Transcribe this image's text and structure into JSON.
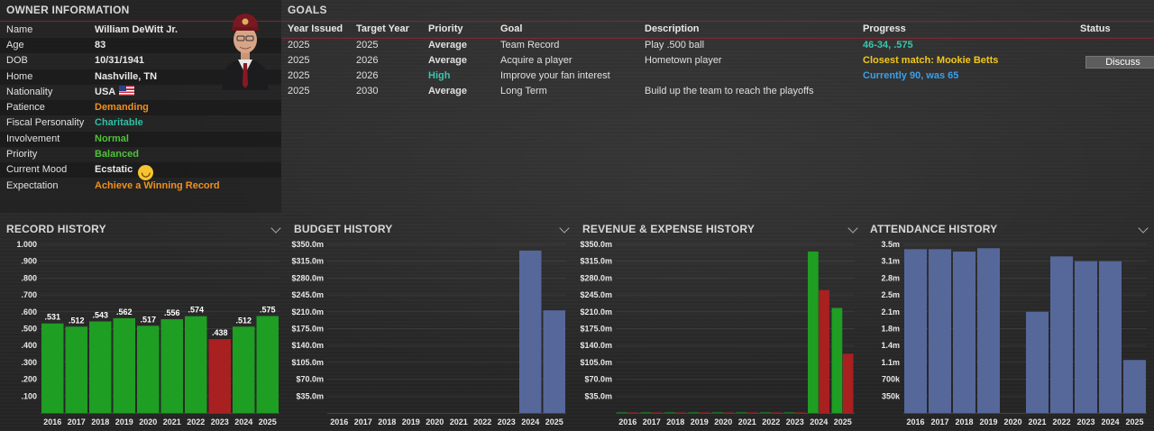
{
  "owner": {
    "title": "OWNER INFORMATION",
    "rows": [
      {
        "label": "Name",
        "value": "William DeWitt Jr."
      },
      {
        "label": "Age",
        "value": "83"
      },
      {
        "label": "DOB",
        "value": "10/31/1941"
      },
      {
        "label": "Home",
        "value": "Nashville, TN"
      },
      {
        "label": "Nationality",
        "value": "USA"
      },
      {
        "label": "Patience",
        "value": "Demanding"
      },
      {
        "label": "Fiscal Personality",
        "value": "Charitable"
      },
      {
        "label": "Involvement",
        "value": "Normal"
      },
      {
        "label": "Priority",
        "value": "Balanced"
      },
      {
        "label": "Current Mood",
        "value": "Ecstatic"
      },
      {
        "label": "Expectation",
        "value": "Achieve a Winning Record"
      }
    ],
    "colors": {
      "orange": "#f0901c",
      "teal": "#2fbfa5",
      "green": "#4fc23a"
    }
  },
  "goals": {
    "title": "GOALS",
    "headers": [
      "Year Issued",
      "Target Year",
      "Priority",
      "Goal",
      "Description",
      "Progress",
      "Status"
    ],
    "rows": [
      {
        "year_issued": "2025",
        "target_year": "2025",
        "priority": "Average",
        "goal": "Team Record",
        "description": "Play .500 ball",
        "progress": "46-34, .575",
        "status": ""
      },
      {
        "year_issued": "2025",
        "target_year": "2026",
        "priority": "Average",
        "goal": "Acquire a player",
        "description": "Hometown player",
        "progress": "Closest match: Mookie Betts",
        "status": "Discuss"
      },
      {
        "year_issued": "2025",
        "target_year": "2026",
        "priority": "High",
        "goal": "Improve your fan interest",
        "description": "",
        "progress": "Currently 90, was 65",
        "status": ""
      },
      {
        "year_issued": "2025",
        "target_year": "2030",
        "priority": "Average",
        "goal": "Long Term",
        "description": "Build up the team to reach the playoffs",
        "progress": "",
        "status": ""
      }
    ]
  },
  "charts": {
    "record_title": "RECORD HISTORY",
    "budget_title": "BUDGET HISTORY",
    "revenue_title": "REVENUE & EXPENSE HISTORY",
    "attendance_title": "ATTENDANCE HISTORY"
  },
  "chart_data": [
    {
      "id": "record",
      "type": "bar",
      "title": "RECORD HISTORY",
      "categories": [
        "2016",
        "2017",
        "2018",
        "2019",
        "2020",
        "2021",
        "2022",
        "2023",
        "2024",
        "2025"
      ],
      "values": [
        0.531,
        0.512,
        0.543,
        0.562,
        0.517,
        0.556,
        0.574,
        0.438,
        0.512,
        0.575
      ],
      "data_labels": [
        ".531",
        ".512",
        ".543",
        ".562",
        ".517",
        ".556",
        ".574",
        ".438",
        ".512",
        ".575"
      ],
      "colors": [
        "#1e9e22",
        "#1e9e22",
        "#1e9e22",
        "#1e9e22",
        "#1e9e22",
        "#1e9e22",
        "#1e9e22",
        "#a82020",
        "#1e9e22",
        "#1e9e22"
      ],
      "yticks": [
        ".100",
        ".200",
        ".300",
        ".400",
        ".500",
        ".600",
        ".700",
        ".800",
        ".900",
        "1.000"
      ],
      "ylim": [
        0,
        1.0
      ]
    },
    {
      "id": "budget",
      "type": "bar",
      "title": "BUDGET HISTORY",
      "categories": [
        "2016",
        "2017",
        "2018",
        "2019",
        "2020",
        "2021",
        "2022",
        "2023",
        "2024",
        "2025"
      ],
      "values": [
        0,
        0,
        0,
        0,
        0,
        0,
        0,
        0,
        337,
        213
      ],
      "color": "#56679a",
      "yticks": [
        "$35.0m",
        "$70.0m",
        "$105.0m",
        "$140.0m",
        "$175.0m",
        "$210.0m",
        "$245.0m",
        "$280.0m",
        "$315.0m",
        "$350.0m"
      ],
      "ylim": [
        0,
        350
      ]
    },
    {
      "id": "revenue",
      "type": "bar",
      "title": "REVENUE & EXPENSE HISTORY",
      "categories": [
        "2016",
        "2017",
        "2018",
        "2019",
        "2020",
        "2021",
        "2022",
        "2023",
        "2024",
        "2025"
      ],
      "series": [
        {
          "values": [
            1,
            1,
            1,
            1,
            1,
            1,
            1,
            1,
            335,
            218
          ],
          "color": "#1e9e22"
        },
        {
          "values": [
            1,
            1,
            1,
            1,
            1,
            1,
            1,
            1,
            255,
            123
          ],
          "color": "#a82020"
        }
      ],
      "yticks": [
        "$35.0m",
        "$70.0m",
        "$105.0m",
        "$140.0m",
        "$175.0m",
        "$210.0m",
        "$245.0m",
        "$280.0m",
        "$315.0m",
        "$350.0m"
      ],
      "ylim": [
        0,
        350
      ]
    },
    {
      "id": "attendance",
      "type": "bar",
      "title": "ATTENDANCE HISTORY",
      "categories": [
        "2016",
        "2017",
        "2018",
        "2019",
        "2020",
        "2021",
        "2022",
        "2023",
        "2024",
        "2025"
      ],
      "values": [
        3.4,
        3.4,
        3.35,
        3.42,
        0,
        2.1,
        3.25,
        3.15,
        3.15,
        1.1
      ],
      "color": "#56679a",
      "yticks": [
        "350k",
        "700k",
        "1.1m",
        "1.4m",
        "1.8m",
        "2.1m",
        "2.5m",
        "2.8m",
        "3.1m",
        "3.5m"
      ],
      "ylim": [
        0,
        3.5
      ]
    }
  ]
}
